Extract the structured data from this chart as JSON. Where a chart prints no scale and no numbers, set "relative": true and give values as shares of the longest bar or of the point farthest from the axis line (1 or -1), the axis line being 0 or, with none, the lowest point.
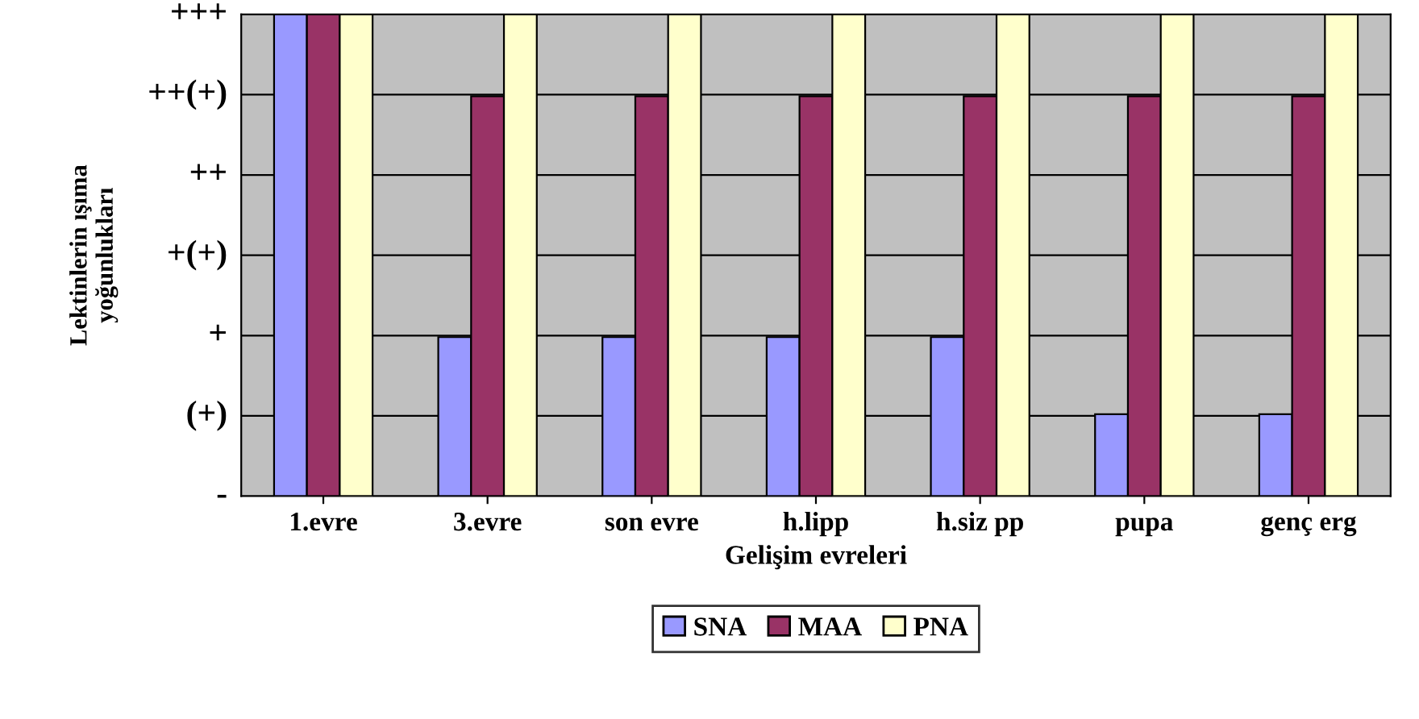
{
  "chart_data": {
    "type": "bar",
    "xlabel": "Gelişim evreleri",
    "ylabel": "Lektinlerin ışıma\nyoğunlukları",
    "categories": [
      "1.evre",
      "3.evre",
      "son evre",
      "h.lipp",
      "h.siz pp",
      "pupa",
      "genç erg"
    ],
    "series": [
      {
        "name": "SNA",
        "color": "#9999ff",
        "values": [
          1,
          0.33,
          0.33,
          0.33,
          0.33,
          0.17,
          0.17
        ]
      },
      {
        "name": "MAA",
        "color": "#993366",
        "values": [
          1,
          0.83,
          0.83,
          0.83,
          0.83,
          0.83,
          0.83
        ]
      },
      {
        "name": "PNA",
        "color": "#ffffcc",
        "values": [
          1,
          1,
          1,
          1,
          1,
          1,
          1
        ]
      }
    ],
    "relative": true,
    "annotations": [
      "-",
      "(+)",
      "+",
      "+(+)",
      "++",
      "++(+)",
      "+++"
    ],
    "grid": "y",
    "legend": "bottom"
  }
}
